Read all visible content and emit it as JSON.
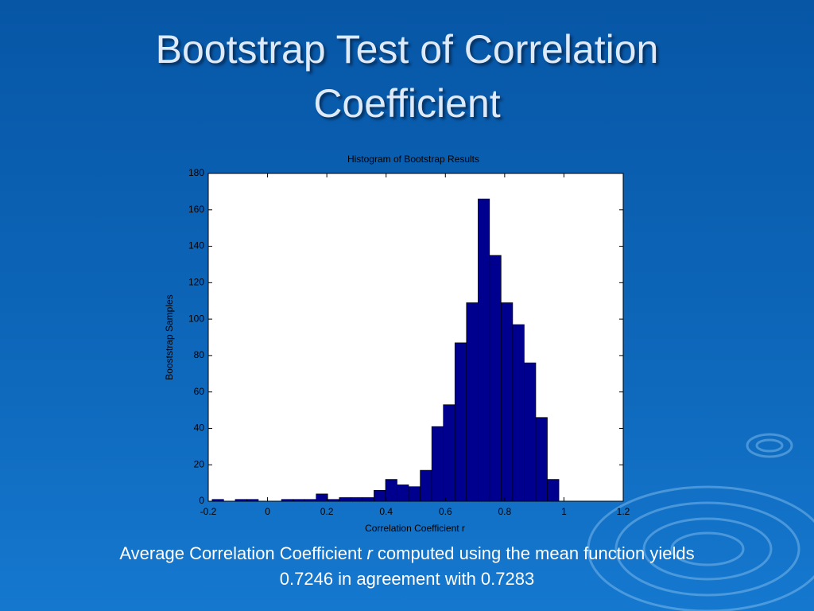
{
  "slide_title": "Bootstrap Test of Correlation Coefficient",
  "caption": {
    "before": "Average Correlation Coefficient",
    "italic": "r",
    "after": "computed using the mean function yields 0.7246 in agreement with 0.7283"
  },
  "chart_data": {
    "type": "histogram",
    "title": "Histogram of Bootstrap Results",
    "x_label": "Correlation Coefficient r",
    "y_label": "Booststrap Samples",
    "bins": [
      -0.187,
      -0.148,
      -0.109,
      -0.07,
      -0.031,
      0.008,
      0.047,
      0.086,
      0.125,
      0.164,
      0.203,
      0.242,
      0.281,
      0.32,
      0.359,
      0.398,
      0.437,
      0.476,
      0.515,
      0.554,
      0.593,
      0.632,
      0.671,
      0.71,
      0.749,
      0.788,
      0.827,
      0.866,
      0.905,
      0.944,
      0.983
    ],
    "counts": [
      1,
      0,
      1,
      1,
      0,
      0,
      1,
      1,
      1,
      4,
      1,
      2,
      2,
      2,
      6,
      12,
      9,
      8,
      17,
      41,
      53,
      87,
      109,
      166,
      135,
      109,
      97,
      76,
      46,
      12
    ],
    "color": "#00008f",
    "xlim": [
      -0.2,
      1.2
    ],
    "xticks": [
      -0.2,
      0,
      0.2,
      0.4,
      0.6,
      0.8,
      1,
      1.2
    ],
    "ylim": [
      0,
      180
    ],
    "yticks": [
      0,
      20,
      40,
      60,
      80,
      100,
      120,
      140,
      160,
      180
    ]
  }
}
